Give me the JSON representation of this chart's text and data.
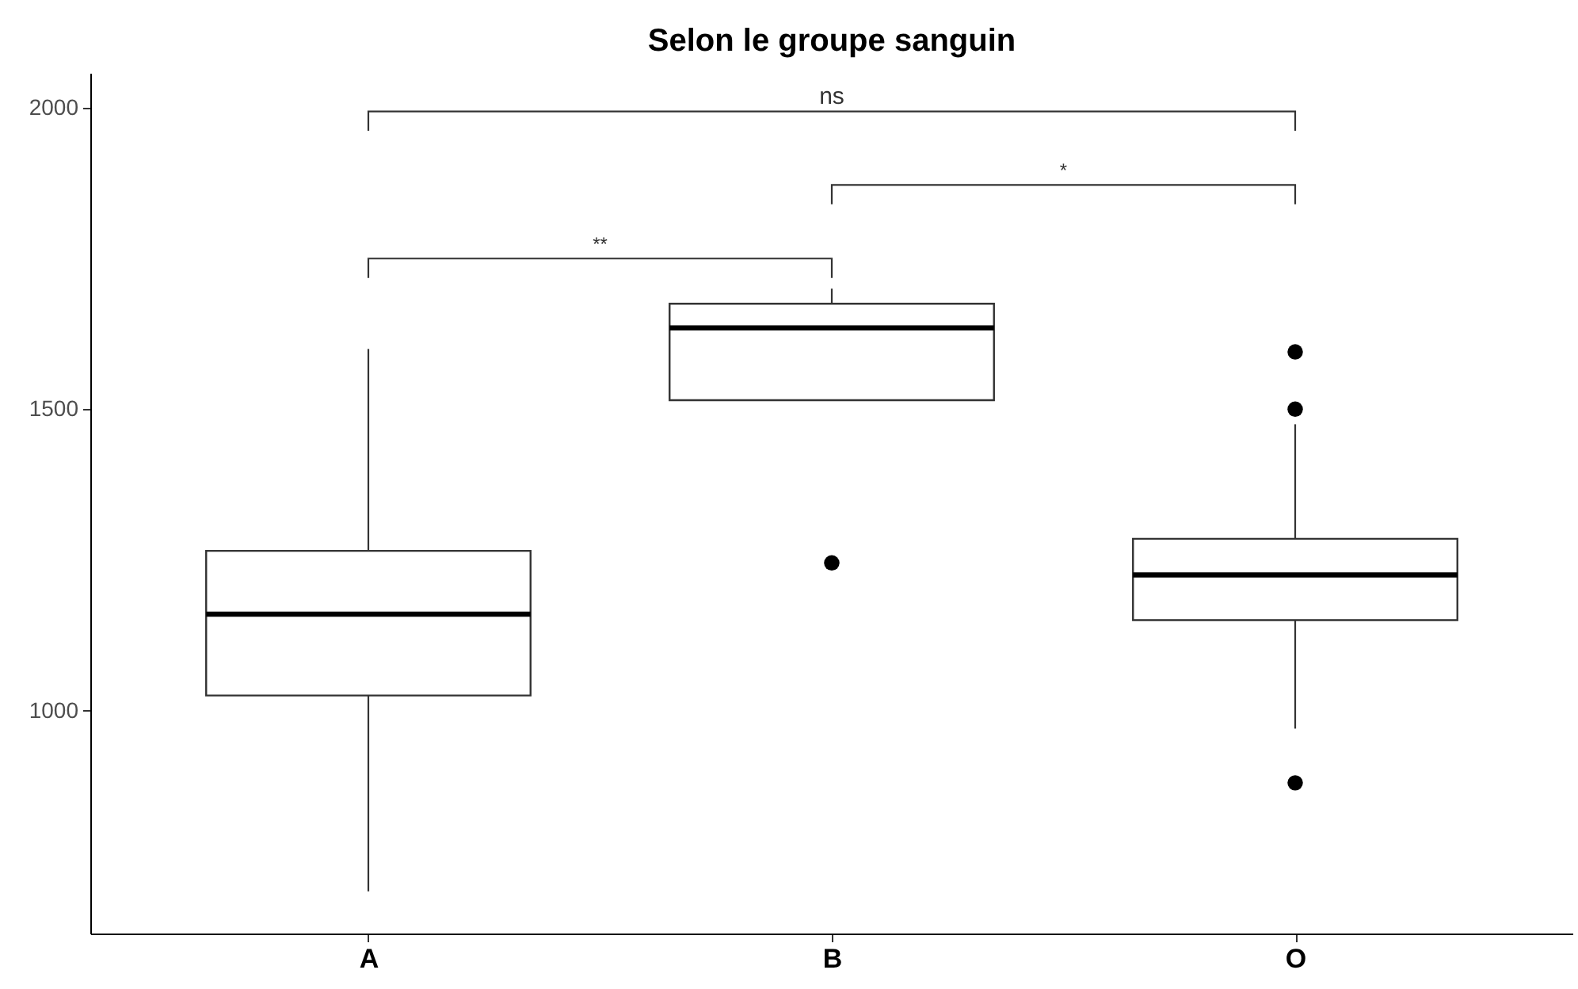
{
  "chart_data": {
    "type": "box",
    "title": "Selon le groupe sanguin",
    "categories": [
      "A",
      "B",
      "O"
    ],
    "boxes": [
      {
        "low": 700,
        "q1": 1025,
        "median": 1160,
        "q3": 1265,
        "high": 1600
      },
      {
        "low": 1515,
        "q1": 1515,
        "median": 1635,
        "q3": 1675,
        "high": 1700,
        "outliers": [
          1245
        ]
      },
      {
        "low": 970,
        "q1": 1150,
        "median": 1225,
        "q3": 1285,
        "high": 1475,
        "outliers": [
          880,
          1500,
          1595
        ]
      }
    ],
    "ylim": [
      630,
      2058
    ],
    "yticks": [
      1000,
      1500,
      2000
    ],
    "grid": false,
    "annotations": [
      "**",
      "*",
      "ns"
    ]
  }
}
